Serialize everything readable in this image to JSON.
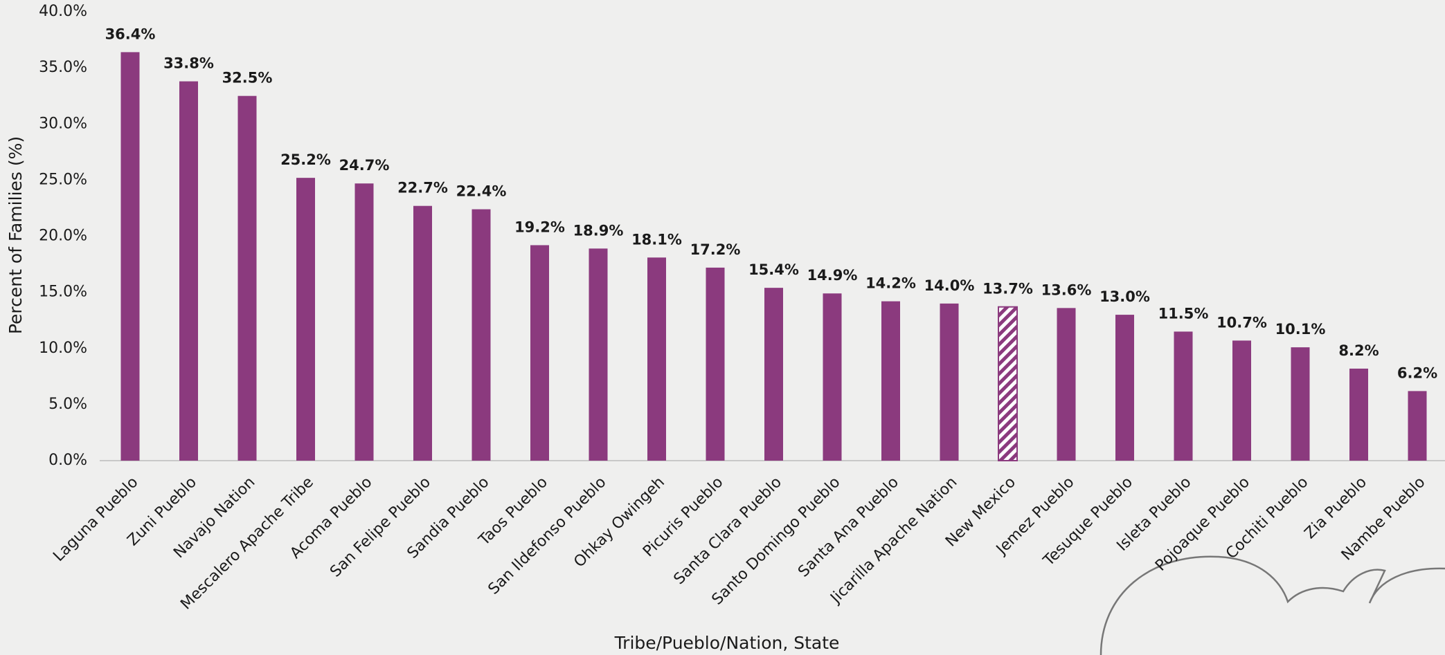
{
  "chart_data": {
    "type": "bar",
    "y_label": "Percent of Families (%)",
    "x_label": "Tribe/Pueblo/Nation, State",
    "categories": [
      "Laguna Pueblo",
      "Zuni Pueblo",
      "Navajo Nation",
      "Mescalero Apache Tribe",
      "Acoma Pueblo",
      "San Felipe Pueblo",
      "Sandia Pueblo",
      "Taos Pueblo",
      "San Ildefonso Pueblo",
      "Ohkay Owingeh",
      "Picuris Pueblo",
      "Santa Clara Pueblo",
      "Santo Domingo Pueblo",
      "Santa Ana Pueblo",
      "Jicarilla Apache Nation",
      "New Mexico",
      "Jemez Pueblo",
      "Tesuque Pueblo",
      "Isleta Pueblo",
      "Pojoaque Pueblo",
      "Cochiti Pueblo",
      "Zia Pueblo",
      "Nambe Pueblo"
    ],
    "values": [
      36.4,
      33.8,
      32.5,
      25.2,
      24.7,
      22.7,
      22.4,
      19.2,
      18.9,
      18.1,
      17.2,
      15.4,
      14.9,
      14.2,
      14.0,
      13.7,
      13.6,
      13.0,
      11.5,
      10.7,
      10.1,
      8.2,
      6.2
    ],
    "value_labels": [
      "36.4%",
      "33.8%",
      "32.5%",
      "25.2%",
      "24.7%",
      "22.7%",
      "22.4%",
      "19.2%",
      "18.9%",
      "18.1%",
      "17.2%",
      "15.4%",
      "14.9%",
      "14.2%",
      "14.0%",
      "13.7%",
      "13.6%",
      "13.0%",
      "11.5%",
      "10.7%",
      "10.1%",
      "8.2%",
      "6.2%"
    ],
    "color": "#8b3a7e",
    "hatched_index": 15,
    "ylim": [
      0,
      40
    ],
    "yticks": [
      {
        "value": 0,
        "label": "0.0%"
      },
      {
        "value": 5,
        "label": "5.0%"
      },
      {
        "value": 10,
        "label": "10.0%"
      },
      {
        "value": 15,
        "label": "15.0%"
      },
      {
        "value": 20,
        "label": "20.0%"
      },
      {
        "value": 25,
        "label": "25.0%"
      },
      {
        "value": 30,
        "label": "30.0%"
      },
      {
        "value": 35,
        "label": "35.0%"
      },
      {
        "value": 40,
        "label": "40.0%"
      }
    ],
    "grid": false
  }
}
